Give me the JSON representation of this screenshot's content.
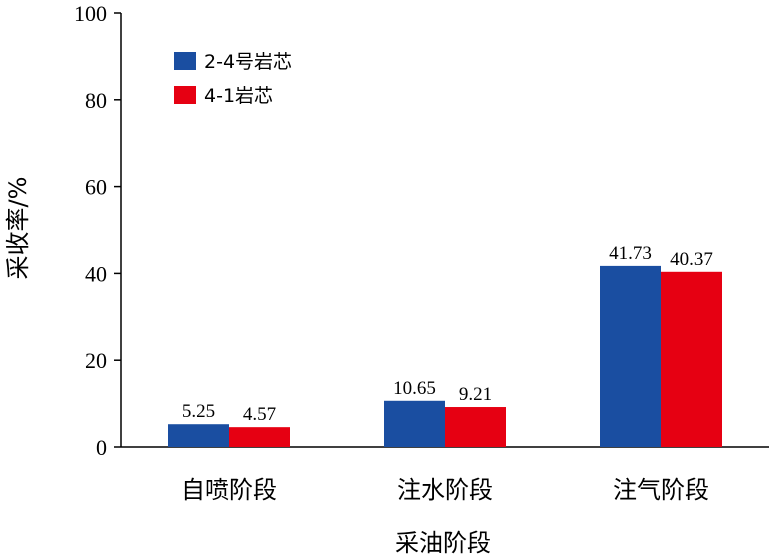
{
  "chart_data": {
    "type": "bar",
    "categories": [
      "自喷阶段",
      "注水阶段",
      "注气阶段"
    ],
    "series": [
      {
        "name": "2-4号岩芯",
        "values": [
          5.25,
          10.65,
          41.73
        ],
        "labels": [
          "5.25",
          "10.65",
          "41.73"
        ],
        "color": "#1a4ea1"
      },
      {
        "name": "4-1岩芯",
        "values": [
          4.57,
          9.21,
          40.37
        ],
        "labels": [
          "4.57",
          "9.21",
          "40.37"
        ],
        "color": "#e60012"
      }
    ],
    "xlabel": "采油阶段",
    "ylabel": "采收率/%",
    "ylim": [
      0,
      100
    ],
    "yticks": [
      "0",
      "20",
      "40",
      "60",
      "80",
      "100"
    ],
    "grid": false,
    "legend_position": "top-left"
  }
}
